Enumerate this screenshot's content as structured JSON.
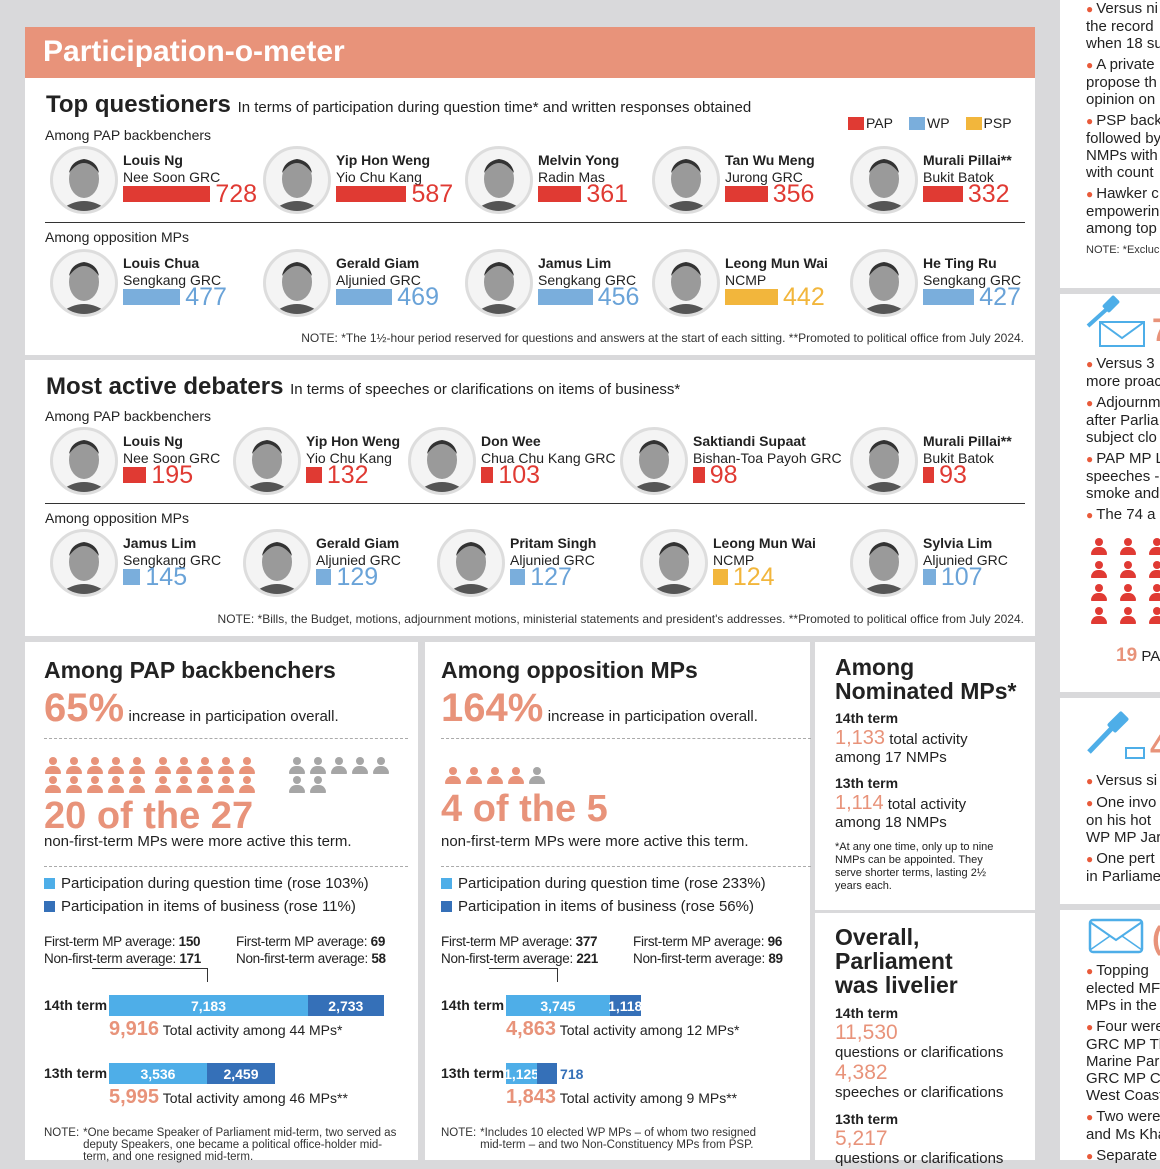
{
  "header": {
    "title": "Participation-o-meter"
  },
  "legend": [
    {
      "party": "PAP",
      "color": "#e03a33"
    },
    {
      "party": "WP",
      "color": "#7aaedc"
    },
    {
      "party": "PSP",
      "color": "#f2b63c"
    }
  ],
  "questioners": {
    "title": "Top questioners",
    "subtitle": "In terms of participation during question time* and written responses obtained",
    "pap_label": "Among PAP backbenchers",
    "opp_label": "Among opposition MPs",
    "pap": [
      {
        "name": "Louis Ng",
        "constituency": "Nee Soon GRC",
        "value": 728,
        "party": "PAP"
      },
      {
        "name": "Yip Hon Weng",
        "constituency": "Yio Chu Kang",
        "value": 587,
        "party": "PAP"
      },
      {
        "name": "Melvin Yong",
        "constituency": "Radin Mas",
        "value": 361,
        "party": "PAP"
      },
      {
        "name": "Tan Wu Meng",
        "constituency": "Jurong GRC",
        "value": 356,
        "party": "PAP"
      },
      {
        "name": "Murali Pillai**",
        "constituency": "Bukit Batok",
        "value": 332,
        "party": "PAP"
      }
    ],
    "opp": [
      {
        "name": "Louis Chua",
        "constituency": "Sengkang GRC",
        "value": 477,
        "party": "WP"
      },
      {
        "name": "Gerald Giam",
        "constituency": "Aljunied GRC",
        "value": 469,
        "party": "WP"
      },
      {
        "name": "Jamus Lim",
        "constituency": "Sengkang GRC",
        "value": 456,
        "party": "WP"
      },
      {
        "name": "Leong Mun Wai",
        "constituency": "NCMP",
        "value": 442,
        "party": "PSP"
      },
      {
        "name": "He Ting Ru",
        "constituency": "Sengkang GRC",
        "value": 427,
        "party": "WP"
      }
    ],
    "note": "NOTE: *The 1½-hour period reserved for questions and answers at the start of each sitting.  **Promoted to political office from July 2024."
  },
  "debaters": {
    "title": "Most active debaters",
    "subtitle": "In terms of speeches or clarifications on items of business*",
    "pap_label": "Among PAP backbenchers",
    "opp_label": "Among opposition MPs",
    "pap": [
      {
        "name": "Louis Ng",
        "constituency": "Nee Soon GRC",
        "value": 195,
        "party": "PAP"
      },
      {
        "name": "Yip Hon Weng",
        "constituency": "Yio Chu Kang",
        "value": 132,
        "party": "PAP"
      },
      {
        "name": "Don Wee",
        "constituency": "Chua Chu Kang GRC",
        "value": 103,
        "party": "PAP"
      },
      {
        "name": "Saktiandi Supaat",
        "constituency": "Bishan-Toa Payoh GRC",
        "value": 98,
        "party": "PAP"
      },
      {
        "name": "Murali Pillai**",
        "constituency": "Bukit Batok",
        "value": 93,
        "party": "PAP"
      }
    ],
    "opp": [
      {
        "name": "Jamus Lim",
        "constituency": "Sengkang GRC",
        "value": 145,
        "party": "WP"
      },
      {
        "name": "Gerald Giam",
        "constituency": "Aljunied GRC",
        "value": 129,
        "party": "WP"
      },
      {
        "name": "Pritam Singh",
        "constituency": "Aljunied GRC",
        "value": 127,
        "party": "WP"
      },
      {
        "name": "Leong Mun Wai",
        "constituency": "NCMP",
        "value": 124,
        "party": "PSP"
      },
      {
        "name": "Sylvia Lim",
        "constituency": "Aljunied GRC",
        "value": 107,
        "party": "WP"
      }
    ],
    "note": "NOTE: *Bills, the Budget, motions, adjournment motions, ministerial statements and president's addresses.  **Promoted to political office from July 2024."
  },
  "pap_panel": {
    "title": "Among PAP backbenchers",
    "pct": "65%",
    "pct_text": "increase in participation overall.",
    "more_active": 20,
    "total": 27,
    "count_text": "20 of the 27",
    "count_sub": "non-first-term MPs were more active this term.",
    "legend_q": "Participation during question time (rose 103%)",
    "legend_b": "Participation in items of business (rose 11%)",
    "avg_q": {
      "l1": "First-term MP average: ",
      "v1": "150",
      "l2": "Non-first-term average: ",
      "v2": "171"
    },
    "avg_b": {
      "l1": "First-term MP average: ",
      "v1": "69",
      "l2": "Non-first-term average: ",
      "v2": "58"
    },
    "terms": [
      {
        "label": "14th term",
        "q": 7183,
        "b": 2733,
        "q_label": "7,183",
        "b_label": "2,733",
        "total": "9,916",
        "total_text": "Total activity among 44 MPs*"
      },
      {
        "label": "13th term",
        "q": 3536,
        "b": 2459,
        "q_label": "3,536",
        "b_label": "2,459",
        "total": "5,995",
        "total_text": "Total activity among 46 MPs**"
      }
    ],
    "note_lead": "NOTE:",
    "note": "*One became Speaker of Parliament mid-term, two served as deputy Speakers, one became a political office-holder mid-term, and one resigned mid-term."
  },
  "opp_panel": {
    "title": "Among opposition MPs",
    "pct": "164%",
    "pct_text": "increase in participation overall.",
    "more_active": 4,
    "total": 5,
    "count_text": "4 of the 5",
    "count_sub": "non-first-term MPs were more active this term.",
    "legend_q": "Participation during question time (rose 233%)",
    "legend_b": "Participation in items of business (rose 56%)",
    "avg_q": {
      "l1": "First-term MP average: ",
      "v1": "377",
      "l2": "Non-first-term average: ",
      "v2": "221"
    },
    "avg_b": {
      "l1": "First-term MP average: ",
      "v1": "96",
      "l2": "Non-first-term average: ",
      "v2": "89"
    },
    "terms": [
      {
        "label": "14th term",
        "q": 3745,
        "b": 1118,
        "q_label": "3,745",
        "b_label": "1,118",
        "total": "4,863",
        "total_text": "Total activity among 12 MPs*"
      },
      {
        "label": "13th term",
        "q": 1125,
        "b": 718,
        "q_label": "1,125",
        "b_label": "718",
        "total": "1,843",
        "total_text": "Total activity among 9 MPs**"
      }
    ],
    "note_lead": "NOTE:",
    "note": "*Includes 10 elected WP MPs – of whom two resigned mid-term – and two Non-Constituency MPs from PSP."
  },
  "nmp_panel": {
    "title1": "Among",
    "title2": "Nominated MPs*",
    "t14": "14th term",
    "v14": "1,133",
    "v14_text": "total activity",
    "v14_sub": "among 17 NMPs",
    "t13": "13th term",
    "v13": "1,114",
    "v13_text": "total activity",
    "v13_sub": "among 18 NMPs",
    "note": "*At any one time, only up to nine NMPs can be appointed. They serve shorter terms, lasting 2½ years each."
  },
  "overall_panel": {
    "title1": "Overall,",
    "title2": "Parliament",
    "title3": "was livelier",
    "t14": "14th term",
    "q14": "11,530",
    "q_text": "questions or clarifications",
    "s14": "4,382",
    "s_text": "speeches or clarifications",
    "t13": "13th term",
    "q13": "5,217",
    "q13_text": "questions or clarifications"
  },
  "right_column": {
    "p1": [
      "Versus ni|the record|when 18 su",
      "A private|propose th|opinion on",
      "PSP back|followed by|NMPs with|with count",
      "Hawker c|empowerin|among top"
    ],
    "p1_note": "NOTE: *Excluc",
    "p2_num": "7",
    "p2": [
      "Versus 3|more proac",
      "Adjournm|after Parlia|subject clo",
      "PAP MP L|speeches -|smoke and",
      "The 74 a"
    ],
    "p2_count": "19",
    "p2_count_text": "PA",
    "p3_num": "4",
    "p3": [
      "Versus si",
      "One invo|on his hot|WP MP Jar",
      "One pert|in Parliame"
    ],
    "p4_num": "(",
    "p4": [
      "Topping|elected MF|MPs in the",
      "Four were|GRC MP Th|Marine Par|GRC MP Ch|West Coast",
      "Two were|and Ms Kha",
      "Separate"
    ]
  },
  "colors": {
    "accent": "#e8937a",
    "pap": "#e03a33",
    "wp": "#7aaedc",
    "psp": "#f2b63c",
    "question_time": "#4eaee8",
    "business": "#3570b8",
    "inactive": "#a6a6a6"
  }
}
